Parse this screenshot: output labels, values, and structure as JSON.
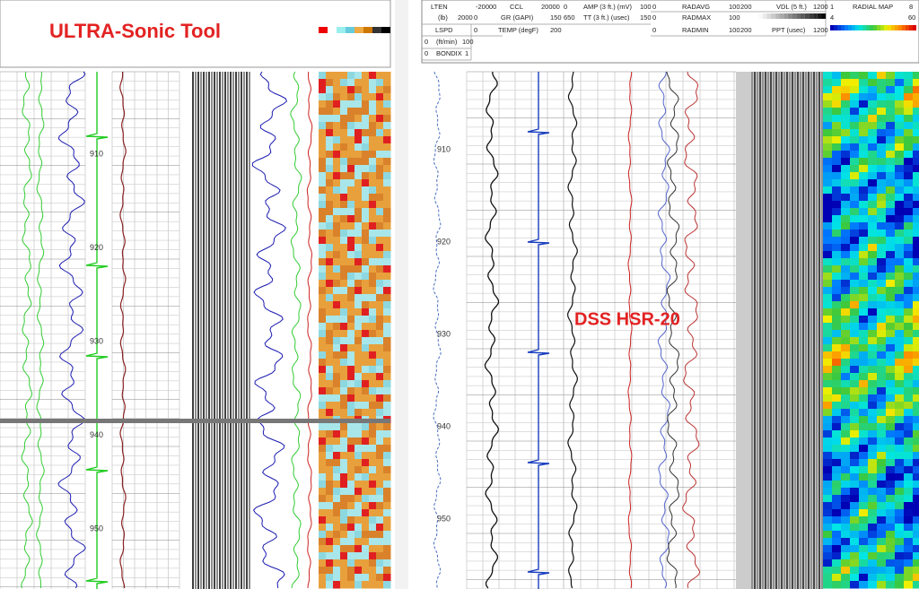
{
  "left": {
    "title": "ULTRA-Sonic Tool",
    "depths": [
      "910",
      "920",
      "930",
      "940",
      "950"
    ]
  },
  "right": {
    "label": "DSS HSR-20",
    "depths": [
      "910",
      "920",
      "930",
      "940",
      "950"
    ],
    "header": [
      [
        "LTEN",
        "-20000",
        "CCL",
        "20000",
        "0",
        "AMP (3 ft.) (mV)",
        "100",
        "0",
        "RADAVG",
        "100",
        "200",
        "VDL (5 ft.)",
        "1200",
        "1",
        "RADIAL MAP",
        "8"
      ],
      [
        "(lb)",
        "2000",
        "0",
        "GR (GAPI)",
        "150",
        "650",
        "TT (3 ft.) (usec)",
        "150",
        "0",
        "RADMAX",
        "100",
        "4",
        "60"
      ],
      [
        "LSPD",
        "0",
        "TEMP (degF)",
        "200",
        "0",
        "RADMIN",
        "100",
        "200",
        "PPT (usec)",
        "1200"
      ],
      [
        "0",
        "(ft/min)",
        "100"
      ],
      [
        "0",
        "BONDIX",
        "1"
      ]
    ]
  }
}
